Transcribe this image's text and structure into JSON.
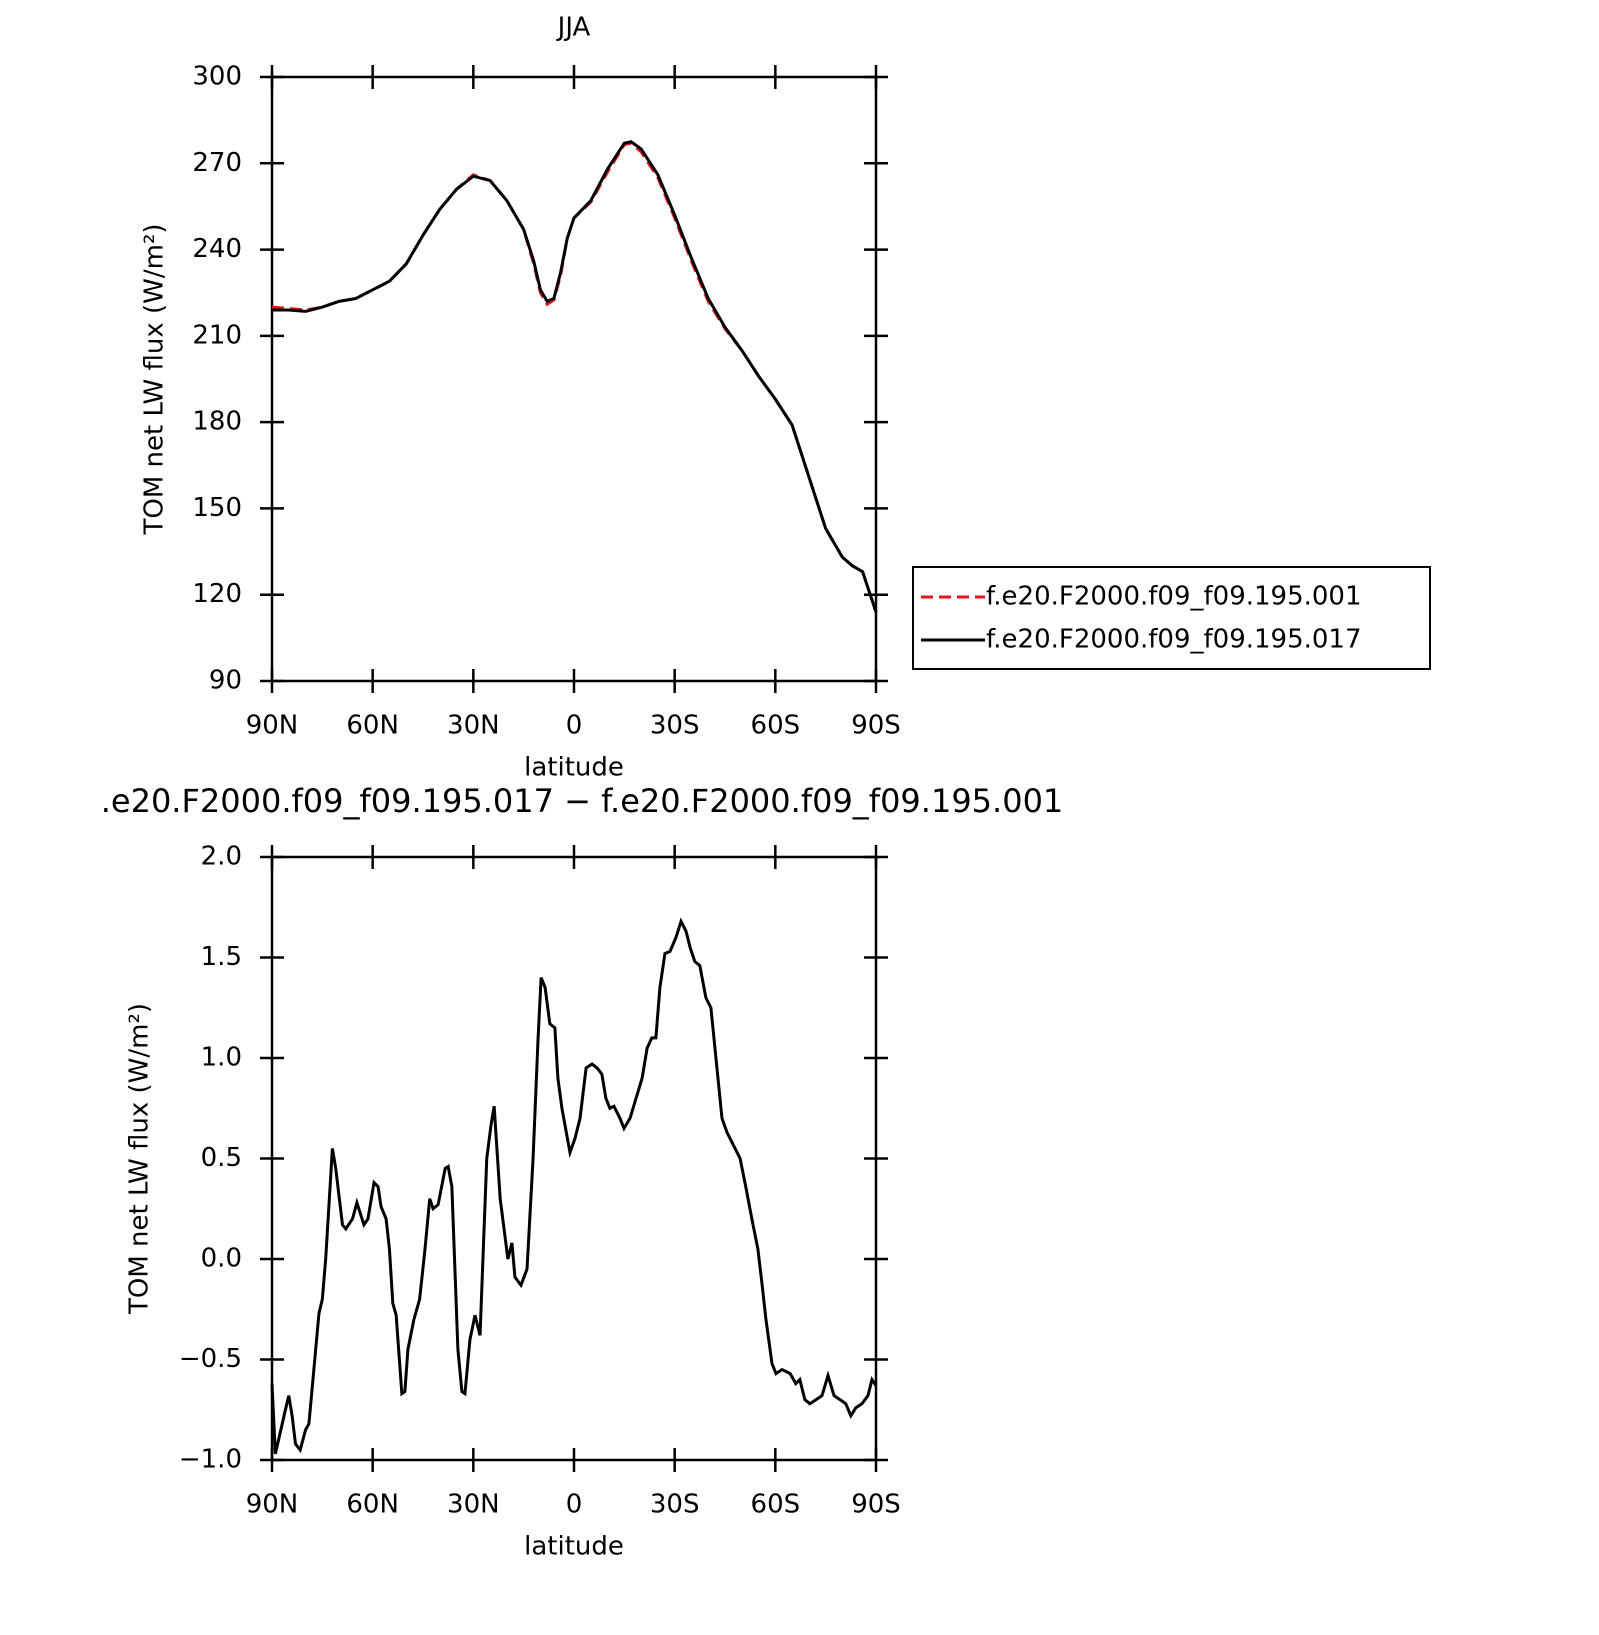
{
  "chart_data": [
    {
      "type": "line",
      "title": "JJA",
      "xlabel": "latitude",
      "ylabel": "TOM net LW flux (W/m²)",
      "x": [
        90,
        85,
        80,
        75,
        70,
        65,
        60,
        55,
        50,
        45,
        40,
        35,
        30,
        25,
        20,
        15,
        12,
        10,
        8,
        6,
        4,
        2,
        0,
        -5,
        -10,
        -15,
        -17,
        -20,
        -25,
        -30,
        -35,
        -40,
        -45,
        -50,
        -55,
        -60,
        -65,
        -70,
        -75,
        -80,
        -83,
        -86,
        -90
      ],
      "series": [
        {
          "name": "f.e20.F2000.f09_f09.195.001",
          "color": "#e8141b",
          "dash": "dashed",
          "values": [
            220,
            219.5,
            219,
            220,
            222,
            223,
            226,
            229,
            235,
            245,
            254,
            261,
            266,
            264,
            257,
            247,
            235,
            225,
            221,
            222.5,
            231,
            244,
            251,
            256.5,
            267,
            276.5,
            277,
            274,
            265,
            251,
            236,
            222,
            212.5,
            205,
            196,
            188,
            179,
            161,
            143,
            133,
            130,
            128,
            114
          ]
        },
        {
          "name": "f.e20.F2000.f09_f09.195.017",
          "color": "#000000",
          "dash": "solid",
          "values": [
            219,
            219,
            218.5,
            220,
            222,
            223,
            226,
            229,
            235,
            245,
            254,
            261,
            265.5,
            264,
            257,
            247,
            236,
            226,
            222,
            223,
            232,
            244,
            251,
            257,
            268,
            277,
            277.5,
            275,
            266,
            252,
            237,
            223,
            213,
            205,
            196,
            188,
            179,
            161,
            143,
            133,
            130,
            128,
            114
          ]
        }
      ],
      "xlim": [
        90,
        -90
      ],
      "xticks": [
        {
          "value": 90,
          "label": "90N"
        },
        {
          "value": 60,
          "label": "60N"
        },
        {
          "value": 30,
          "label": "30N"
        },
        0,
        {
          "value": -30,
          "label": "30S"
        },
        {
          "value": -60,
          "label": "60S"
        },
        {
          "value": -90,
          "label": "90S"
        }
      ],
      "ylim": [
        90,
        300
      ],
      "yticks": [
        90,
        120,
        150,
        180,
        210,
        240,
        270,
        300
      ],
      "legend": "right"
    },
    {
      "type": "line",
      "title": ".e20.F2000.f09_f09.195.017 − f.e20.F2000.f09_f09.195.001",
      "xlabel": "latitude",
      "ylabel": "TOM net LW flux (W/m²)",
      "x": [
        90,
        89,
        86,
        85,
        84,
        83,
        81.6,
        80,
        79,
        76,
        75,
        74,
        72,
        71,
        69,
        68,
        66,
        64.7,
        62.6,
        61.4,
        59.6,
        58.4,
        57.5,
        56,
        55,
        54,
        53,
        51.3,
        50.4,
        49.5,
        47.7,
        46,
        44.4,
        43,
        42,
        40.5,
        38.4,
        37.5,
        36.4,
        34.6,
        33.4,
        32.5,
        31,
        29.5,
        28,
        26,
        24.7,
        23.8,
        22,
        19.7,
        18.5,
        17.6,
        15.8,
        14,
        12.2,
        10.7,
        9.8,
        8.6,
        7.2,
        5.7,
        4.8,
        3.6,
        1.2,
        -0.3,
        -1.8,
        -3.6,
        -5.4,
        -6.9,
        -8.3,
        -9.5,
        -10.7,
        -11.9,
        -13.7,
        -14.9,
        -16.7,
        -18.5,
        -20.3,
        -21.8,
        -23.2,
        -24.4,
        -25.6,
        -27.1,
        -28.6,
        -30.4,
        -31.9,
        -33.4,
        -34.6,
        -36,
        -37.5,
        -39.3,
        -40.8,
        -42.3,
        -44.1,
        -45.6,
        -47.4,
        -49.5,
        -51.3,
        -53,
        -54.8,
        -56,
        -57.2,
        -59,
        -60.2,
        -62,
        -64.4,
        -66.1,
        -67.3,
        -68.8,
        -70.3,
        -72.1,
        -73.9,
        -75.7,
        -77.5,
        -79.3,
        -81,
        -82.5,
        -84,
        -85.8,
        -87.6,
        -88.8,
        -90
      ],
      "series": [
        {
          "color": "#000000",
          "dash": "solid",
          "values": [
            -0.62,
            -0.97,
            -0.75,
            -0.68,
            -0.78,
            -0.92,
            -0.95,
            -0.85,
            -0.82,
            -0.27,
            -0.2,
            0,
            0.55,
            0.45,
            0.17,
            0.15,
            0.2,
            0.28,
            0.17,
            0.2,
            0.38,
            0.36,
            0.26,
            0.2,
            0.05,
            -0.22,
            -0.28,
            -0.67,
            -0.66,
            -0.45,
            -0.3,
            -0.2,
            0.05,
            0.3,
            0.25,
            0.27,
            0.45,
            0.46,
            0.36,
            -0.45,
            -0.66,
            -0.67,
            -0.4,
            -0.28,
            -0.38,
            0.5,
            0.67,
            0.76,
            0.3,
            0,
            0.08,
            -0.09,
            -0.13,
            -0.05,
            0.5,
            1.1,
            1.4,
            1.35,
            1.17,
            1.15,
            0.9,
            0.75,
            0.53,
            0.6,
            0.7,
            0.95,
            0.97,
            0.95,
            0.92,
            0.8,
            0.75,
            0.76,
            0.7,
            0.65,
            0.7,
            0.8,
            0.9,
            1.05,
            1.1,
            1.1,
            1.35,
            1.52,
            1.53,
            1.6,
            1.68,
            1.63,
            1.55,
            1.48,
            1.46,
            1.3,
            1.25,
            1.0,
            0.7,
            0.63,
            0.57,
            0.5,
            0.35,
            0.2,
            0.05,
            -0.12,
            -0.3,
            -0.52,
            -0.57,
            -0.55,
            -0.57,
            -0.62,
            -0.6,
            -0.7,
            -0.72,
            -0.7,
            -0.68,
            -0.58,
            -0.68,
            -0.7,
            -0.72,
            -0.78,
            -0.74,
            -0.72,
            -0.68,
            -0.6,
            -0.63
          ]
        }
      ],
      "xlim": [
        90,
        -90
      ],
      "xticks": [
        {
          "value": 90,
          "label": "90N"
        },
        {
          "value": 60,
          "label": "60N"
        },
        {
          "value": 30,
          "label": "30N"
        },
        0,
        {
          "value": -30,
          "label": "30S"
        },
        {
          "value": -60,
          "label": "60S"
        },
        {
          "value": -90,
          "label": "90S"
        }
      ],
      "ylim": [
        -1,
        2
      ],
      "yticks": [
        {
          "value": -1,
          "label": "−1.0"
        },
        {
          "value": -0.5,
          "label": "−0.5"
        },
        {
          "value": 0,
          "label": "0.0"
        },
        {
          "value": 0.5,
          "label": "0.5"
        },
        {
          "value": 1,
          "label": "1.0"
        },
        {
          "value": 1.5,
          "label": "1.5"
        },
        {
          "value": 2,
          "label": "2.0"
        }
      ]
    }
  ]
}
